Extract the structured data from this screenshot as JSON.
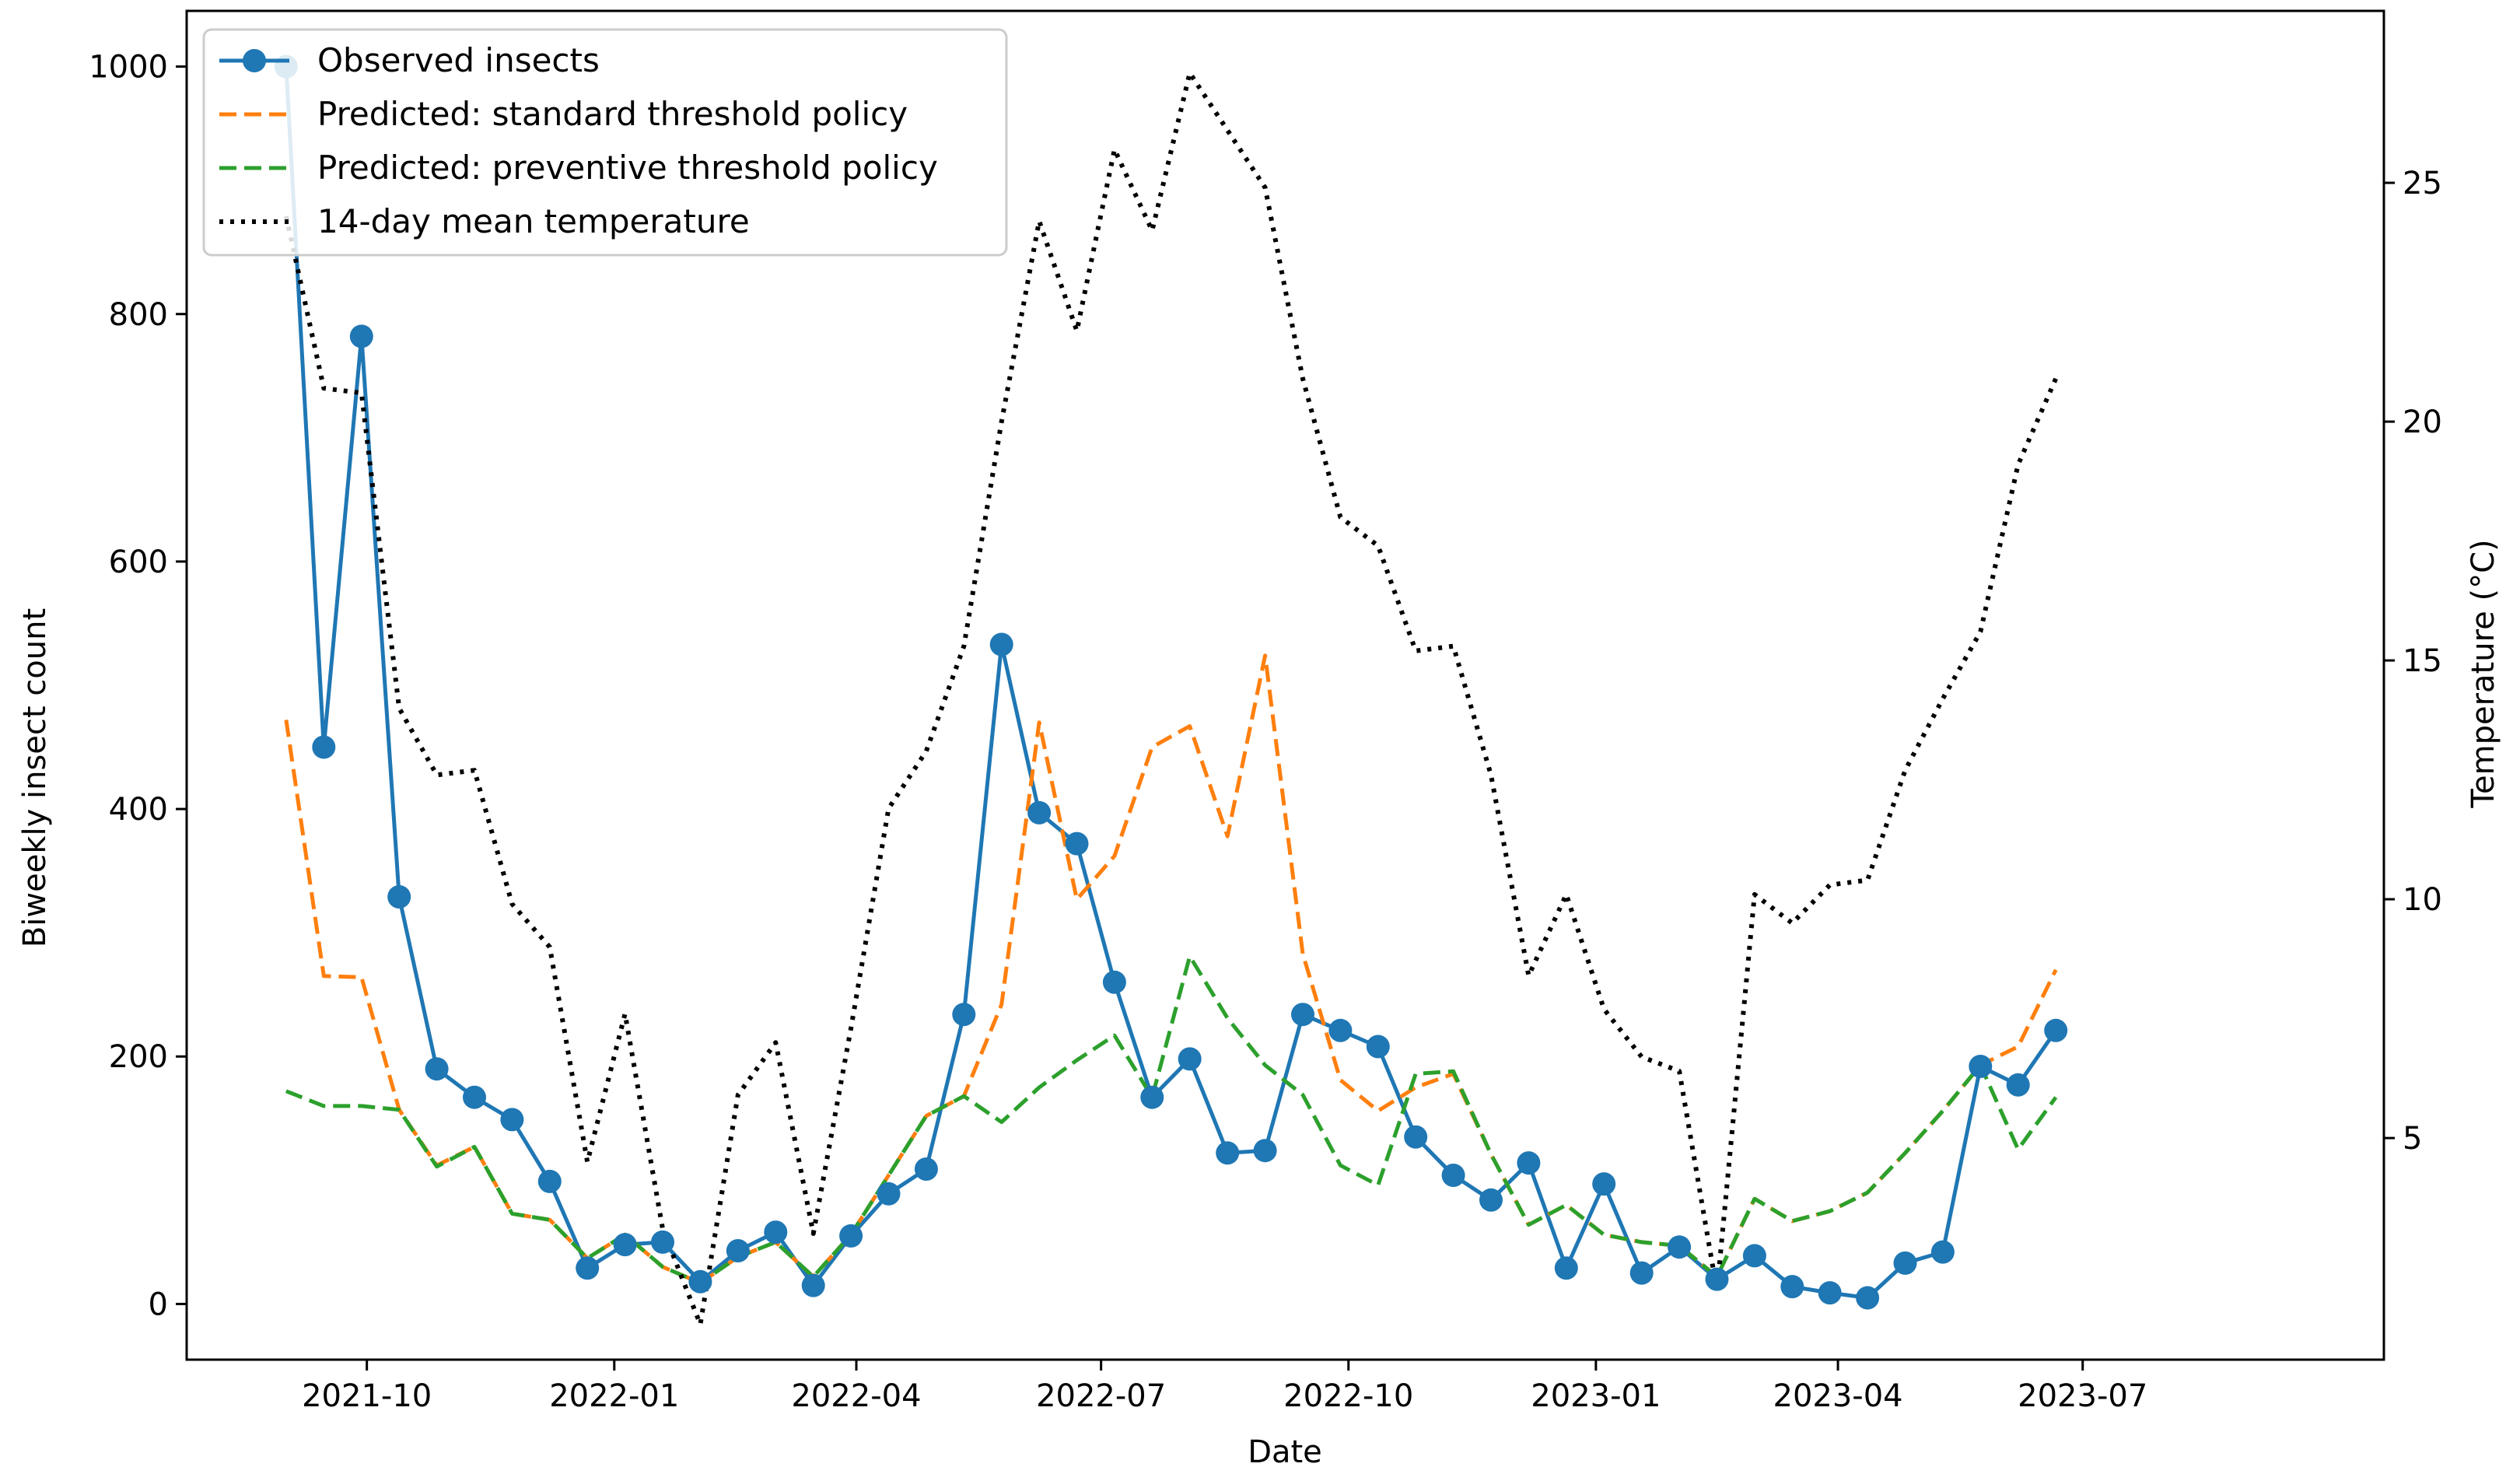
{
  "chart_data": {
    "type": "line",
    "xlabel": "Date",
    "ylabel": "Biweekly insect count",
    "y2label": "Temperature (°C)",
    "ylim": [
      -45,
      1045
    ],
    "y2lim": [
      0.36,
      28.6
    ],
    "yticks": [
      0,
      200,
      400,
      600,
      800,
      1000
    ],
    "y2ticks": [
      5,
      10,
      15,
      20,
      25
    ],
    "x_start": "2021-09-01",
    "x_step_days": 14,
    "xlim_days": [
      -37,
      780
    ],
    "xticks": [
      {
        "label": "2021-10",
        "day": 30
      },
      {
        "label": "2022-01",
        "day": 122
      },
      {
        "label": "2022-04",
        "day": 212
      },
      {
        "label": "2022-07",
        "day": 303
      },
      {
        "label": "2022-10",
        "day": 395
      },
      {
        "label": "2023-01",
        "day": 487
      },
      {
        "label": "2023-04",
        "day": 577
      },
      {
        "label": "2023-07",
        "day": 668
      }
    ],
    "legend_position": "top-left",
    "series": [
      {
        "name": "Observed insects",
        "axis": "left",
        "color": "#1f77b4",
        "style": "solid-marker",
        "values": [
          1000,
          450,
          782,
          329,
          190,
          167,
          149,
          99,
          29,
          48,
          50,
          18,
          43,
          58,
          15,
          55,
          89,
          109,
          234,
          533,
          397,
          372,
          260,
          167,
          198,
          122,
          124,
          234,
          221,
          208,
          135,
          104,
          84,
          114,
          29,
          97,
          25,
          46,
          20,
          39,
          14,
          9,
          5,
          33,
          42,
          192,
          177,
          221
        ]
      },
      {
        "name": "Predicted: standard threshold policy",
        "axis": "left",
        "color": "#ff7f0e",
        "style": "dashed",
        "values": [
          472,
          265,
          264,
          157,
          112,
          127,
          73,
          68,
          37,
          56,
          30,
          17,
          38,
          50,
          22,
          56,
          104,
          152,
          168,
          242,
          470,
          327,
          362,
          450,
          467,
          378,
          524,
          283,
          181,
          156,
          175,
          186,
          121,
          64,
          80,
          56,
          50,
          47,
          22,
          85,
          67,
          75,
          90,
          122,
          156,
          193,
          208,
          270
        ]
      },
      {
        "name": "Predicted: preventive threshold policy",
        "axis": "left",
        "color": "#2ca02c",
        "style": "dashed",
        "values": [
          172,
          160,
          160,
          157,
          111,
          127,
          73,
          68,
          37,
          56,
          30,
          17,
          38,
          50,
          22,
          56,
          104,
          152,
          168,
          147,
          175,
          197,
          217,
          167,
          281,
          231,
          193,
          169,
          112,
          96,
          186,
          188,
          121,
          64,
          80,
          56,
          50,
          47,
          22,
          85,
          67,
          75,
          90,
          122,
          156,
          193,
          125,
          167
        ]
      },
      {
        "name": "14-day mean temperature",
        "axis": "right",
        "color": "#000000",
        "style": "dotted",
        "values": [
          24.3,
          20.7,
          20.6,
          14.0,
          12.6,
          12.7,
          9.9,
          9.0,
          4.5,
          7.6,
          3.1,
          1.1,
          5.9,
          7.0,
          3.0,
          7.3,
          11.9,
          13.1,
          15.3,
          20.0,
          24.2,
          21.9,
          25.7,
          24.0,
          27.3,
          26.1,
          24.9,
          20.9,
          18.0,
          17.4,
          15.2,
          15.3,
          12.6,
          8.4,
          10.1,
          7.7,
          6.7,
          6.4,
          1.8,
          10.1,
          9.5,
          10.3,
          10.4,
          12.7,
          14.2,
          15.6,
          19.1,
          20.9
        ]
      }
    ]
  }
}
